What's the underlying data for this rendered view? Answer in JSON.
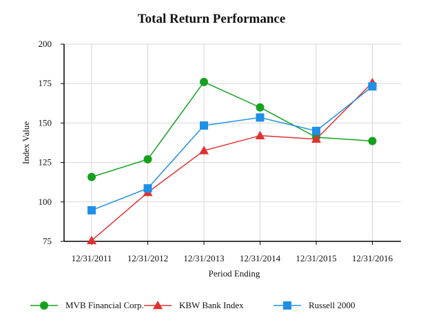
{
  "chart_data": {
    "type": "line",
    "title": "Total Return Performance",
    "xlabel": "Period Ending",
    "ylabel": "Index Value",
    "categories": [
      "12/31/2011",
      "12/31/2012",
      "12/31/2013",
      "12/31/2014",
      "12/31/2015",
      "12/31/2016"
    ],
    "ylim": [
      75,
      200
    ],
    "yticks": [
      75,
      100,
      125,
      150,
      175,
      200
    ],
    "grid": true,
    "legend_position": "bottom",
    "series": [
      {
        "name": "MVB Financial Corp.",
        "values": [
          115.8,
          127.0,
          176.0,
          159.9,
          141.0,
          138.6
        ],
        "color": "#15a11e",
        "marker": "circle"
      },
      {
        "name": "KBW Bank Index",
        "values": [
          75.5,
          106.0,
          132.5,
          142.0,
          139.8,
          175.6
        ],
        "color": "#e03030",
        "marker": "triangle"
      },
      {
        "name": "Russell 2000",
        "values": [
          94.7,
          108.6,
          148.4,
          153.5,
          145.0,
          173.2
        ],
        "color": "#1e90e6",
        "marker": "square"
      }
    ]
  }
}
